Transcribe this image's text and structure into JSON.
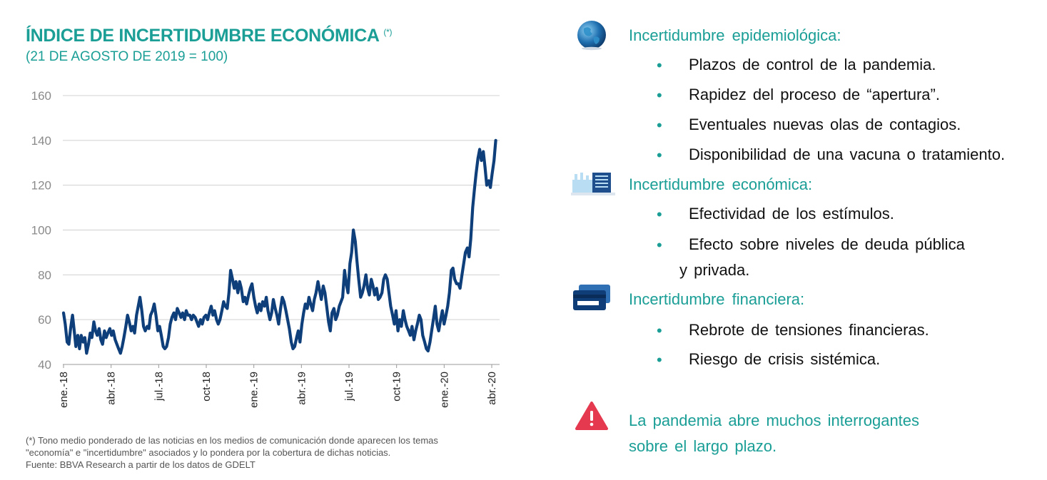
{
  "title": "ÍNDICE DE INCERTIDUMBRE ECONÓMICA",
  "title_note": "(*)",
  "subtitle": "(21 DE AGOSTO DE 2019 = 100)",
  "footnote": {
    "line1": "(*) Tono medio ponderado de las noticias en los medios de comunicación donde aparecen los temas",
    "line2": "\"economía\" e \"incertidumbre\" asociados y lo pondera por la cobertura de dichas noticias.",
    "source": "Fuente: BBVA Research a partir de los datos de GDELT"
  },
  "sections": [
    {
      "icon": "globe-icon",
      "heading": "Incertidumbre epidemiológica:",
      "items": [
        "Plazos de control de la pandemia.",
        "Rapidez del proceso de “apertura”.",
        "Eventuales nuevas olas de contagios.",
        "Disponibilidad de una vacuna o tratamiento."
      ]
    },
    {
      "icon": "factory-icon",
      "heading": "Incertidumbre económica:",
      "items": [
        "Efectividad de los estímulos.",
        "Efecto sobre niveles de deuda pública",
        "y privada."
      ]
    },
    {
      "icon": "credit-card-icon",
      "heading": "Incertidumbre financiera:",
      "items": [
        "Rebrote de tensiones financieras.",
        "Riesgo de crisis sistémica."
      ]
    }
  ],
  "conclusion": {
    "icon": "warning-icon",
    "line1": "La pandemia abre muchos interrogantes",
    "line2": "sobre el largo plazo."
  },
  "colors": {
    "accent": "#1a9e96",
    "line": "#0f3f7a",
    "grid": "#d0d0d0",
    "warning": "#e5394f"
  },
  "chart_data": {
    "type": "line",
    "title": "ÍNDICE DE INCERTIDUMBRE ECONÓMICA",
    "subtitle": "(21 DE AGOSTO DE 2019 = 100)",
    "ylim": [
      40,
      160
    ],
    "yticks": [
      40,
      60,
      80,
      100,
      120,
      140,
      160
    ],
    "xlabel": "",
    "ylabel": "",
    "grid": true,
    "x_ticks": [
      "ene.-18",
      "abr.-18",
      "jul.-18",
      "oct-18",
      "ene.-19",
      "abr.-19",
      "jul.-19",
      "oct-19",
      "ene.-20",
      "abr.-20"
    ],
    "x_range": [
      0,
      28
    ],
    "series": [
      {
        "name": "Índice de incertidumbre económica",
        "points": [
          [
            0.0,
            63
          ],
          [
            0.08,
            58
          ],
          [
            0.17,
            50
          ],
          [
            0.25,
            49
          ],
          [
            0.33,
            56
          ],
          [
            0.42,
            62
          ],
          [
            0.5,
            55
          ],
          [
            0.58,
            48
          ],
          [
            0.67,
            53
          ],
          [
            0.75,
            47
          ],
          [
            0.83,
            53
          ],
          [
            0.92,
            50
          ],
          [
            1.0,
            52
          ],
          [
            1.08,
            45
          ],
          [
            1.17,
            49
          ],
          [
            1.25,
            54
          ],
          [
            1.33,
            52
          ],
          [
            1.42,
            59
          ],
          [
            1.5,
            55
          ],
          [
            1.58,
            53
          ],
          [
            1.67,
            56
          ],
          [
            1.75,
            51
          ],
          [
            1.83,
            49
          ],
          [
            1.92,
            55
          ],
          [
            2.0,
            52
          ],
          [
            2.08,
            54
          ],
          [
            2.17,
            56
          ],
          [
            2.25,
            53
          ],
          [
            2.33,
            55
          ],
          [
            2.42,
            51
          ],
          [
            2.5,
            49
          ],
          [
            2.58,
            47
          ],
          [
            2.67,
            45
          ],
          [
            2.75,
            48
          ],
          [
            2.83,
            52
          ],
          [
            2.92,
            57
          ],
          [
            3.0,
            62
          ],
          [
            3.08,
            59
          ],
          [
            3.17,
            55
          ],
          [
            3.25,
            57
          ],
          [
            3.33,
            54
          ],
          [
            3.42,
            62
          ],
          [
            3.5,
            66
          ],
          [
            3.58,
            70
          ],
          [
            3.67,
            64
          ],
          [
            3.75,
            57
          ],
          [
            3.83,
            55
          ],
          [
            3.92,
            57
          ],
          [
            4.0,
            56
          ],
          [
            4.08,
            62
          ],
          [
            4.17,
            64
          ],
          [
            4.25,
            67
          ],
          [
            4.33,
            62
          ],
          [
            4.42,
            55
          ],
          [
            4.5,
            57
          ],
          [
            4.58,
            53
          ],
          [
            4.67,
            48
          ],
          [
            4.75,
            47
          ],
          [
            4.83,
            48
          ],
          [
            4.92,
            52
          ],
          [
            5.0,
            58
          ],
          [
            5.08,
            61
          ],
          [
            5.17,
            63
          ],
          [
            5.25,
            60
          ],
          [
            5.33,
            65
          ],
          [
            5.42,
            63
          ],
          [
            5.5,
            61
          ],
          [
            5.58,
            63
          ],
          [
            5.67,
            60
          ],
          [
            5.75,
            64
          ],
          [
            5.83,
            62
          ],
          [
            5.92,
            62
          ],
          [
            6.0,
            60
          ],
          [
            6.08,
            62
          ],
          [
            6.17,
            61
          ],
          [
            6.25,
            59
          ],
          [
            6.33,
            57
          ],
          [
            6.42,
            60
          ],
          [
            6.5,
            58
          ],
          [
            6.58,
            61
          ],
          [
            6.67,
            62
          ],
          [
            6.75,
            60
          ],
          [
            6.83,
            63
          ],
          [
            6.92,
            66
          ],
          [
            7.0,
            62
          ],
          [
            7.08,
            64
          ],
          [
            7.17,
            60
          ],
          [
            7.25,
            58
          ],
          [
            7.33,
            60
          ],
          [
            7.42,
            64
          ],
          [
            7.5,
            68
          ],
          [
            7.58,
            66
          ],
          [
            7.67,
            65
          ],
          [
            7.75,
            72
          ],
          [
            7.83,
            82
          ],
          [
            7.92,
            78
          ],
          [
            8.0,
            74
          ],
          [
            8.08,
            77
          ],
          [
            8.17,
            72
          ],
          [
            8.25,
            77
          ],
          [
            8.33,
            74
          ],
          [
            8.42,
            68
          ],
          [
            8.5,
            70
          ],
          [
            8.58,
            67
          ],
          [
            8.67,
            71
          ],
          [
            8.75,
            74
          ],
          [
            8.83,
            76
          ],
          [
            8.92,
            70
          ],
          [
            9.0,
            66
          ],
          [
            9.08,
            63
          ],
          [
            9.17,
            67
          ],
          [
            9.25,
            64
          ],
          [
            9.33,
            68
          ],
          [
            9.42,
            66
          ],
          [
            9.5,
            70
          ],
          [
            9.58,
            64
          ],
          [
            9.67,
            60
          ],
          [
            9.75,
            63
          ],
          [
            9.83,
            69
          ],
          [
            9.92,
            65
          ],
          [
            10.0,
            62
          ],
          [
            10.08,
            58
          ],
          [
            10.17,
            65
          ],
          [
            10.25,
            70
          ],
          [
            10.33,
            68
          ],
          [
            10.42,
            64
          ],
          [
            10.5,
            60
          ],
          [
            10.58,
            56
          ],
          [
            10.67,
            50
          ],
          [
            10.75,
            47
          ],
          [
            10.83,
            48
          ],
          [
            10.92,
            52
          ],
          [
            11.0,
            55
          ],
          [
            11.08,
            50
          ],
          [
            11.17,
            58
          ],
          [
            11.25,
            63
          ],
          [
            11.33,
            67
          ],
          [
            11.42,
            65
          ],
          [
            11.5,
            70
          ],
          [
            11.58,
            67
          ],
          [
            11.67,
            64
          ],
          [
            11.75,
            69
          ],
          [
            11.83,
            72
          ],
          [
            11.92,
            77
          ],
          [
            12.0,
            73
          ],
          [
            12.08,
            69
          ],
          [
            12.17,
            75
          ],
          [
            12.25,
            72
          ],
          [
            12.33,
            66
          ],
          [
            12.42,
            59
          ],
          [
            12.5,
            55
          ],
          [
            12.58,
            63
          ],
          [
            12.67,
            65
          ],
          [
            12.75,
            60
          ],
          [
            12.83,
            62
          ],
          [
            12.92,
            66
          ],
          [
            13.0,
            68
          ],
          [
            13.08,
            70
          ],
          [
            13.17,
            82
          ],
          [
            13.25,
            76
          ],
          [
            13.33,
            72
          ],
          [
            13.42,
            85
          ],
          [
            13.5,
            90
          ],
          [
            13.58,
            100
          ],
          [
            13.67,
            95
          ],
          [
            13.75,
            86
          ],
          [
            13.83,
            78
          ],
          [
            13.92,
            70
          ],
          [
            14.0,
            72
          ],
          [
            14.08,
            75
          ],
          [
            14.17,
            80
          ],
          [
            14.25,
            74
          ],
          [
            14.33,
            71
          ],
          [
            14.42,
            78
          ],
          [
            14.5,
            75
          ],
          [
            14.58,
            71
          ],
          [
            14.67,
            74
          ],
          [
            14.75,
            69
          ],
          [
            14.83,
            70
          ],
          [
            14.92,
            72
          ],
          [
            15.0,
            78
          ],
          [
            15.08,
            80
          ],
          [
            15.17,
            78
          ],
          [
            15.25,
            72
          ],
          [
            15.33,
            66
          ],
          [
            15.42,
            62
          ],
          [
            15.5,
            58
          ],
          [
            15.58,
            64
          ],
          [
            15.67,
            55
          ],
          [
            15.75,
            60
          ],
          [
            15.83,
            57
          ],
          [
            15.92,
            64
          ],
          [
            16.0,
            60
          ],
          [
            16.08,
            57
          ],
          [
            16.17,
            55
          ],
          [
            16.25,
            53
          ],
          [
            16.33,
            57
          ],
          [
            16.42,
            51
          ],
          [
            16.5,
            55
          ],
          [
            16.58,
            58
          ],
          [
            16.67,
            62
          ],
          [
            16.75,
            60
          ],
          [
            16.83,
            53
          ],
          [
            16.92,
            50
          ],
          [
            17.0,
            47
          ],
          [
            17.08,
            46
          ],
          [
            17.17,
            50
          ],
          [
            17.25,
            55
          ],
          [
            17.33,
            60
          ],
          [
            17.42,
            66
          ],
          [
            17.5,
            58
          ],
          [
            17.58,
            55
          ],
          [
            17.67,
            60
          ],
          [
            17.75,
            64
          ],
          [
            17.83,
            58
          ],
          [
            17.92,
            62
          ],
          [
            18.0,
            66
          ],
          [
            18.08,
            72
          ],
          [
            18.17,
            82
          ],
          [
            18.25,
            83
          ],
          [
            18.33,
            78
          ],
          [
            18.42,
            76
          ],
          [
            18.5,
            76
          ],
          [
            18.58,
            74
          ],
          [
            18.67,
            80
          ],
          [
            18.75,
            85
          ],
          [
            18.83,
            90
          ],
          [
            18.92,
            92
          ],
          [
            19.0,
            88
          ],
          [
            19.08,
            96
          ],
          [
            19.17,
            110
          ],
          [
            19.25,
            118
          ],
          [
            19.33,
            125
          ],
          [
            19.42,
            132
          ],
          [
            19.5,
            136
          ],
          [
            19.58,
            131
          ],
          [
            19.67,
            135
          ],
          [
            19.75,
            128
          ],
          [
            19.83,
            120
          ],
          [
            19.92,
            122
          ],
          [
            20.0,
            119
          ],
          [
            20.08,
            125
          ],
          [
            20.17,
            131
          ],
          [
            20.25,
            140
          ]
        ]
      }
    ]
  }
}
